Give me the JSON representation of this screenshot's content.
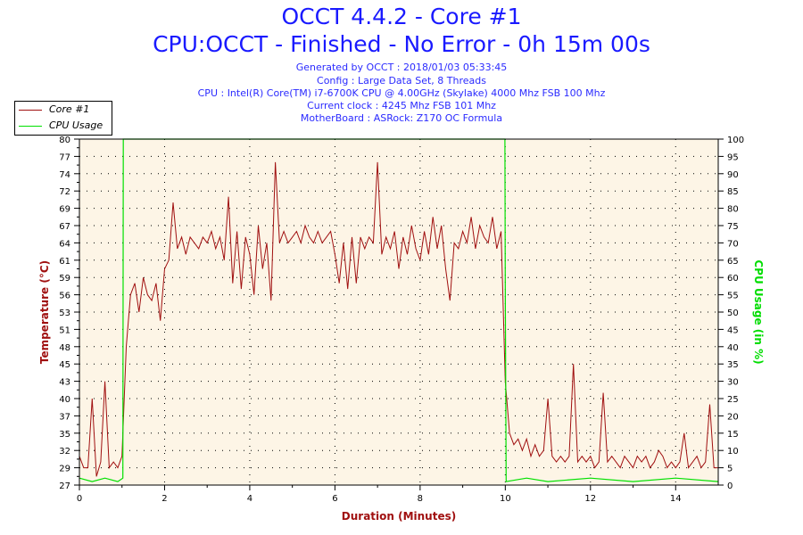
{
  "header": {
    "title": "OCCT 4.4.2 - Core #1",
    "subtitle": "CPU:OCCT - Finished - No Error - 0h 15m 00s",
    "info": [
      "Generated by OCCT : 2018/01/03 05:33:45",
      "Config : Large Data Set, 8 Threads",
      "CPU : Intel(R) Core(TM) i7-6700K CPU @ 4.00GHz (Skylake) 4000 Mhz FSB 100 Mhz",
      "Current clock : 4245 Mhz FSB 101 Mhz",
      "MotherBoard : ASRock: Z170 OC Formula"
    ]
  },
  "colors": {
    "temp": "#a01010",
    "cpu": "#00e000",
    "plot_bg": "#fdf5e6",
    "title": "#1a1aff"
  },
  "chart_data": {
    "type": "line",
    "xlabel": "Duration (Minutes)",
    "ylabel": "Temperature (°C)",
    "y2label": "CPU Usage (in %)",
    "xlim": [
      0,
      15
    ],
    "ylim": [
      27,
      80
    ],
    "y2lim": [
      0,
      100
    ],
    "xticks": [
      0,
      2,
      4,
      6,
      8,
      10,
      12,
      14
    ],
    "yticks": [
      80,
      77,
      74,
      72,
      69,
      67,
      64,
      61,
      59,
      56,
      53,
      51,
      48,
      45,
      43,
      40,
      37,
      35,
      32,
      29,
      27
    ],
    "y2ticks": [
      100,
      95,
      90,
      85,
      80,
      75,
      70,
      65,
      60,
      55,
      50,
      45,
      40,
      35,
      30,
      25,
      20,
      15,
      10,
      5,
      0
    ],
    "grid": true,
    "legend_position": "top-left",
    "series": [
      {
        "name": "Core #1",
        "axis": "left",
        "x_step": 0.1,
        "values": [
          31,
          29,
          29,
          40,
          28,
          30,
          43,
          29,
          30,
          29,
          31,
          48,
          56,
          58,
          53,
          59,
          56,
          55,
          58,
          52,
          60,
          61,
          70,
          63,
          65,
          62,
          65,
          64,
          63,
          65,
          64,
          66,
          63,
          65,
          61,
          71,
          58,
          66,
          57,
          65,
          62,
          56,
          67,
          60,
          64,
          55,
          76,
          64,
          66,
          64,
          65,
          66,
          64,
          67,
          65,
          64,
          66,
          64,
          65,
          66,
          62,
          58,
          64,
          57,
          65,
          58,
          65,
          63,
          65,
          64,
          76,
          62,
          65,
          63,
          66,
          60,
          65,
          62,
          67,
          63,
          61,
          66,
          62,
          68,
          63,
          67,
          60,
          55,
          64,
          63,
          66,
          64,
          68,
          63,
          67,
          65,
          64,
          68,
          63,
          66,
          43,
          35,
          33,
          34,
          32,
          34,
          31,
          33,
          31,
          32,
          40,
          31,
          30,
          31,
          30,
          31,
          45,
          30,
          31,
          30,
          31,
          29,
          30,
          41,
          30,
          31,
          30,
          29,
          31,
          30,
          29,
          31,
          30,
          31,
          29,
          30,
          32,
          31,
          29,
          30,
          29,
          30,
          35,
          29,
          30,
          31,
          29,
          30,
          39,
          29,
          29
        ]
      },
      {
        "name": "CPU Usage",
        "axis": "right",
        "x": [
          0,
          0.3,
          0.6,
          0.9,
          1.02,
          1.03,
          9.99,
          10.0,
          10.02,
          10.5,
          11,
          12,
          13,
          14,
          15
        ],
        "values": [
          2,
          1,
          2,
          1,
          2,
          100,
          100,
          58,
          1,
          2,
          1,
          2,
          1,
          2,
          1
        ]
      }
    ]
  }
}
